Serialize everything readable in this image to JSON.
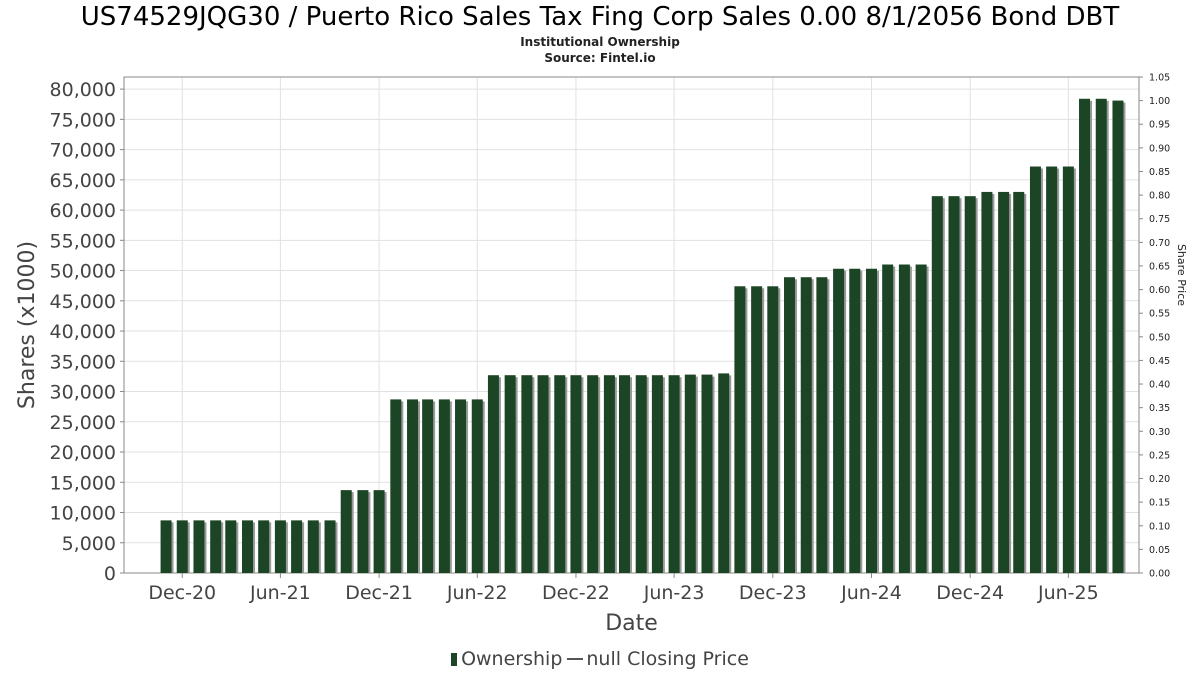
{
  "chart_data": {
    "type": "bar",
    "title": "US74529JQG30 / Puerto Rico Sales Tax Fing Corp Sales 0.00 8/1/2056 Bond DBT",
    "subtitle_lines": [
      "Institutional Ownership",
      "Source: Fintel.io"
    ],
    "xlabel": "Date",
    "ylabel": "Shares (x1000)",
    "y2label": "Share Price",
    "ylim": [
      0,
      82000
    ],
    "y2lim": [
      0,
      1.05
    ],
    "x_range": [
      "2020-08-15",
      "2025-10-10"
    ],
    "y_ticks": [
      "0",
      "5,000",
      "10,000",
      "15,000",
      "20,000",
      "25,000",
      "30,000",
      "35,000",
      "40,000",
      "45,000",
      "50,000",
      "55,000",
      "60,000",
      "65,000",
      "70,000",
      "75,000",
      "80,000"
    ],
    "y2_ticks": [
      "0.00",
      "0.05",
      "0.10",
      "0.15",
      "0.20",
      "0.25",
      "0.30",
      "0.35",
      "0.40",
      "0.45",
      "0.50",
      "0.55",
      "0.60",
      "0.65",
      "0.70",
      "0.75",
      "0.80",
      "0.85",
      "0.90",
      "0.95",
      "1.00",
      "1.05"
    ],
    "x_ticks": [
      {
        "label": "Dec-20",
        "date": "2020-12-01"
      },
      {
        "label": "Jun-21",
        "date": "2021-06-01"
      },
      {
        "label": "Dec-21",
        "date": "2021-12-01"
      },
      {
        "label": "Jun-22",
        "date": "2022-06-01"
      },
      {
        "label": "Dec-22",
        "date": "2022-12-01"
      },
      {
        "label": "Jun-23",
        "date": "2023-06-01"
      },
      {
        "label": "Dec-23",
        "date": "2023-12-01"
      },
      {
        "label": "Jun-24",
        "date": "2024-06-01"
      },
      {
        "label": "Dec-24",
        "date": "2024-12-01"
      },
      {
        "label": "Jun-25",
        "date": "2025-06-01"
      }
    ],
    "grid": true,
    "legend_position": "bottom",
    "legend": [
      {
        "label": "Ownership",
        "kind": "bar"
      },
      {
        "label": "null Closing Price",
        "kind": "line"
      }
    ],
    "series": [
      {
        "name": "Ownership",
        "color": "#1b4524",
        "points": [
          {
            "date": "2020-11-01",
            "value": 8700
          },
          {
            "date": "2020-12-01",
            "value": 8700
          },
          {
            "date": "2021-01-01",
            "value": 8700
          },
          {
            "date": "2021-02-01",
            "value": 8700
          },
          {
            "date": "2021-03-01",
            "value": 8700
          },
          {
            "date": "2021-04-01",
            "value": 8700
          },
          {
            "date": "2021-05-01",
            "value": 8700
          },
          {
            "date": "2021-06-01",
            "value": 8700
          },
          {
            "date": "2021-07-01",
            "value": 8700
          },
          {
            "date": "2021-08-01",
            "value": 8700
          },
          {
            "date": "2021-09-01",
            "value": 8700
          },
          {
            "date": "2021-10-01",
            "value": 13700
          },
          {
            "date": "2021-11-01",
            "value": 13700
          },
          {
            "date": "2021-12-01",
            "value": 13700
          },
          {
            "date": "2022-01-01",
            "value": 28700
          },
          {
            "date": "2022-02-01",
            "value": 28700
          },
          {
            "date": "2022-03-01",
            "value": 28700
          },
          {
            "date": "2022-04-01",
            "value": 28700
          },
          {
            "date": "2022-05-01",
            "value": 28700
          },
          {
            "date": "2022-06-01",
            "value": 28700
          },
          {
            "date": "2022-07-01",
            "value": 32700
          },
          {
            "date": "2022-08-01",
            "value": 32700
          },
          {
            "date": "2022-09-01",
            "value": 32700
          },
          {
            "date": "2022-10-01",
            "value": 32700
          },
          {
            "date": "2022-11-01",
            "value": 32700
          },
          {
            "date": "2022-12-01",
            "value": 32700
          },
          {
            "date": "2023-01-01",
            "value": 32700
          },
          {
            "date": "2023-02-01",
            "value": 32700
          },
          {
            "date": "2023-03-01",
            "value": 32700
          },
          {
            "date": "2023-04-01",
            "value": 32700
          },
          {
            "date": "2023-05-01",
            "value": 32700
          },
          {
            "date": "2023-06-01",
            "value": 32700
          },
          {
            "date": "2023-07-01",
            "value": 32800
          },
          {
            "date": "2023-08-01",
            "value": 32800
          },
          {
            "date": "2023-09-01",
            "value": 33000
          },
          {
            "date": "2023-10-01",
            "value": 47400
          },
          {
            "date": "2023-11-01",
            "value": 47400
          },
          {
            "date": "2023-12-01",
            "value": 47400
          },
          {
            "date": "2024-01-01",
            "value": 48900
          },
          {
            "date": "2024-02-01",
            "value": 48900
          },
          {
            "date": "2024-03-01",
            "value": 48900
          },
          {
            "date": "2024-04-01",
            "value": 50300
          },
          {
            "date": "2024-05-01",
            "value": 50300
          },
          {
            "date": "2024-06-01",
            "value": 50300
          },
          {
            "date": "2024-07-01",
            "value": 51000
          },
          {
            "date": "2024-08-01",
            "value": 51000
          },
          {
            "date": "2024-09-01",
            "value": 51000
          },
          {
            "date": "2024-10-01",
            "value": 62300
          },
          {
            "date": "2024-11-01",
            "value": 62300
          },
          {
            "date": "2024-12-01",
            "value": 62300
          },
          {
            "date": "2025-01-01",
            "value": 63000
          },
          {
            "date": "2025-02-01",
            "value": 63000
          },
          {
            "date": "2025-03-01",
            "value": 63000
          },
          {
            "date": "2025-04-01",
            "value": 67200
          },
          {
            "date": "2025-05-01",
            "value": 67200
          },
          {
            "date": "2025-06-01",
            "value": 67200
          },
          {
            "date": "2025-07-01",
            "value": 78400
          },
          {
            "date": "2025-08-01",
            "value": 78400
          },
          {
            "date": "2025-09-01",
            "value": 78100
          }
        ]
      }
    ]
  }
}
